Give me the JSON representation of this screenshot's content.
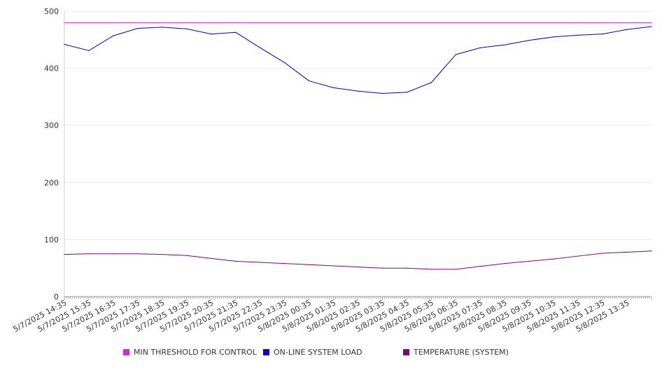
{
  "chart_data": {
    "type": "line",
    "ylim": [
      0,
      500
    ],
    "y_ticks": [
      0,
      100,
      200,
      300,
      400,
      500
    ],
    "x_tick_labels": [
      "5/7/2025 14:35",
      "5/7/2025 15:35",
      "5/7/2025 16:35",
      "5/7/2025 17:35",
      "5/7/2025 18:35",
      "5/7/2025 19:35",
      "5/7/2025 20:35",
      "5/7/2025 21:35",
      "5/7/2025 22:35",
      "5/7/2025 23:35",
      "5/8/2025 00:35",
      "5/8/2025 01:35",
      "5/8/2025 02:35",
      "5/8/2025 03:35",
      "5/8/2025 04:35",
      "5/8/2025 05:35",
      "5/8/2025 06:35",
      "5/8/2025 07:35",
      "5/8/2025 08:35",
      "5/8/2025 09:35",
      "5/8/2025 10:35",
      "5/8/2025 11:35",
      "5/8/2025 12:35",
      "5/8/2025 13:35"
    ],
    "grid": true,
    "legend_position": "bottom",
    "series": [
      {
        "name": "MIN THRESHOLD FOR CONTROL",
        "color": "#e020e0",
        "x": [
          "5/7/2025 14:35",
          "5/8/2025 14:35"
        ],
        "values": [
          480,
          480
        ]
      },
      {
        "name": "ON-LINE SYSTEM LOAD",
        "color": "#0000cc",
        "x": [
          "5/7/2025 14:35",
          "5/7/2025 15:35",
          "5/7/2025 16:35",
          "5/7/2025 17:35",
          "5/7/2025 18:35",
          "5/7/2025 19:35",
          "5/7/2025 20:35",
          "5/7/2025 21:35",
          "5/7/2025 22:35",
          "5/7/2025 23:35",
          "5/8/2025 00:35",
          "5/8/2025 01:35",
          "5/8/2025 02:35",
          "5/8/2025 03:35",
          "5/8/2025 04:35",
          "5/8/2025 05:35",
          "5/8/2025 06:35",
          "5/8/2025 07:35",
          "5/8/2025 08:35",
          "5/8/2025 09:35",
          "5/8/2025 10:35",
          "5/8/2025 11:35",
          "5/8/2025 12:35",
          "5/8/2025 13:35",
          "5/8/2025 14:35"
        ],
        "values": [
          442,
          431,
          457,
          470,
          472,
          469,
          460,
          463,
          436,
          410,
          378,
          366,
          360,
          356,
          358,
          375,
          424,
          436,
          441,
          449,
          455,
          458,
          460,
          468,
          473
        ]
      },
      {
        "name": "TEMPERATURE (SYSTEM)",
        "color": "#800080",
        "x": [
          "5/7/2025 14:35",
          "5/7/2025 15:35",
          "5/7/2025 16:35",
          "5/7/2025 17:35",
          "5/7/2025 18:35",
          "5/7/2025 19:35",
          "5/7/2025 20:35",
          "5/7/2025 21:35",
          "5/7/2025 22:35",
          "5/7/2025 23:35",
          "5/8/2025 00:35",
          "5/8/2025 01:35",
          "5/8/2025 02:35",
          "5/8/2025 03:35",
          "5/8/2025 04:35",
          "5/8/2025 05:35",
          "5/8/2025 06:35",
          "5/8/2025 07:35",
          "5/8/2025 08:35",
          "5/8/2025 09:35",
          "5/8/2025 10:35",
          "5/8/2025 11:35",
          "5/8/2025 12:35",
          "5/8/2025 13:35",
          "5/8/2025 14:35"
        ],
        "values": [
          74,
          75,
          75,
          75,
          74,
          72,
          67,
          62,
          60,
          58,
          56,
          54,
          52,
          50,
          50,
          48,
          48,
          53,
          58,
          62,
          66,
          71,
          76,
          78,
          80
        ]
      }
    ]
  }
}
